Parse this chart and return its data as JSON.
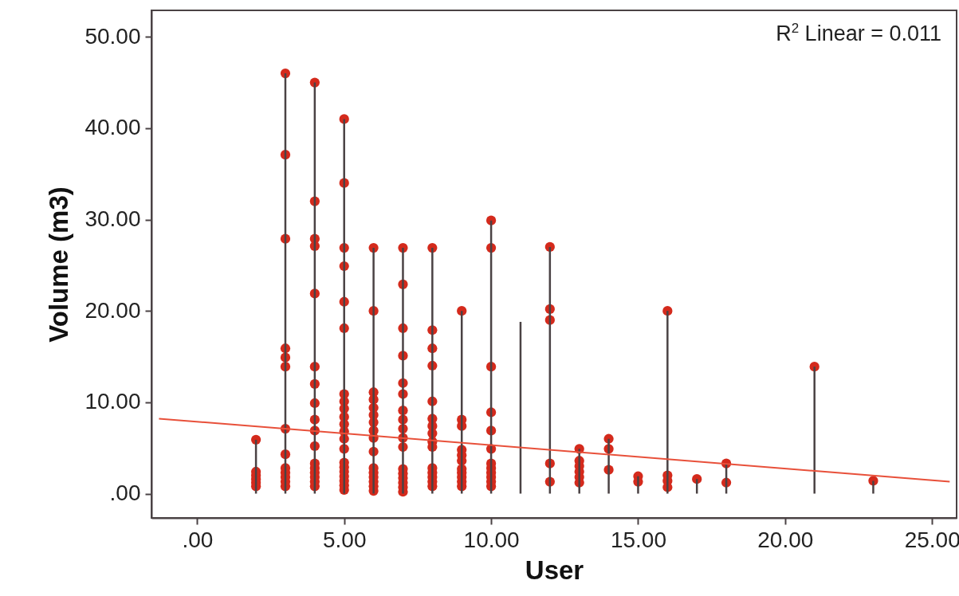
{
  "chart_data": {
    "type": "scatter",
    "xlabel": "User",
    "ylabel": "Volume (m3)",
    "xlim": [
      -1.42,
      25.7
    ],
    "ylim": [
      -2.66,
      52.9
    ],
    "xticks": [
      {
        "value": 0,
        "label": ".00"
      },
      {
        "value": 5,
        "label": "5.00"
      },
      {
        "value": 10,
        "label": "10.00"
      },
      {
        "value": 15,
        "label": "15.00"
      },
      {
        "value": 20,
        "label": "20.00"
      },
      {
        "value": 25,
        "label": "25.00"
      }
    ],
    "yticks": [
      {
        "value": 0,
        "label": ".00"
      },
      {
        "value": 10,
        "label": "10.00"
      },
      {
        "value": 20,
        "label": "20.00"
      },
      {
        "value": 30,
        "label": "30.00"
      },
      {
        "value": 40,
        "label": "40.00"
      },
      {
        "value": 50,
        "label": "50.00"
      }
    ],
    "marker": "circle",
    "annotations": [
      "R$^{2}$ Linear = 0.011"
    ],
    "series": [
      {
        "type": "bar",
        "color": "#4a4244",
        "x": [
          2,
          3,
          4,
          5,
          6,
          7,
          8,
          9,
          10,
          11,
          12,
          13,
          14,
          15,
          16,
          17,
          18,
          21,
          23
        ],
        "values": [
          5.9,
          46.0,
          45.0,
          41.0,
          26.9,
          26.9,
          26.9,
          20.0,
          29.9,
          18.8,
          27.0,
          4.9,
          6.0,
          1.9,
          20.0,
          1.6,
          3.3,
          13.9,
          1.4
        ]
      },
      {
        "color": "#d42a1c",
        "x": [
          2,
          2,
          2,
          2,
          2,
          2,
          3,
          3,
          3,
          3,
          3,
          3,
          3,
          3,
          3,
          3,
          3,
          3,
          3,
          4,
          4,
          4,
          4,
          4,
          4,
          4,
          4,
          4,
          4,
          4,
          4,
          4,
          4,
          4,
          4,
          4,
          5,
          5,
          5,
          5,
          5,
          5,
          5,
          5,
          5,
          5,
          5,
          5,
          5,
          5,
          5,
          5,
          5,
          5,
          5,
          5,
          5,
          6,
          6,
          6,
          6,
          6,
          6,
          6,
          6,
          6,
          6,
          6,
          6,
          6,
          6,
          6,
          6,
          7,
          7,
          7,
          7,
          7,
          7,
          7,
          7,
          7,
          7,
          7,
          7,
          7,
          7,
          7,
          7,
          7,
          8,
          8,
          8,
          8,
          8,
          8,
          8,
          8,
          8,
          8,
          8,
          8,
          8,
          8,
          8,
          9,
          9,
          9,
          9,
          9,
          9,
          9,
          9,
          9,
          9,
          9,
          10,
          10,
          10,
          10,
          10,
          10,
          10,
          10,
          10,
          10,
          10,
          10,
          12,
          12,
          12,
          12,
          12,
          13,
          13,
          13,
          13,
          13,
          13,
          14,
          14,
          14,
          15,
          15,
          16,
          16,
          16,
          16,
          17,
          18,
          18,
          21,
          23
        ],
        "values": [
          5.9,
          0.8,
          1.2,
          1.6,
          2.0,
          2.4,
          46.0,
          37.1,
          27.9,
          15.9,
          14.9,
          13.9,
          7.1,
          4.3,
          0.8,
          1.3,
          1.8,
          2.3,
          2.8,
          45.0,
          32.0,
          27.9,
          27.1,
          21.9,
          13.9,
          12.0,
          9.9,
          8.1,
          6.9,
          5.2,
          0.8,
          1.3,
          1.8,
          2.3,
          2.8,
          3.3,
          41.0,
          34.0,
          26.9,
          24.9,
          21.0,
          18.1,
          10.9,
          10.1,
          9.3,
          8.4,
          7.6,
          6.8,
          6.0,
          4.9,
          0.4,
          0.9,
          1.4,
          1.9,
          2.4,
          2.9,
          3.4,
          26.9,
          20.0,
          11.1,
          10.3,
          9.4,
          8.6,
          7.8,
          6.9,
          6.1,
          4.6,
          0.3,
          0.8,
          1.3,
          1.8,
          2.3,
          2.8,
          26.9,
          22.9,
          18.1,
          15.1,
          12.1,
          10.9,
          9.1,
          8.1,
          7.1,
          6.1,
          5.1,
          0.2,
          0.7,
          1.2,
          1.7,
          2.2,
          2.7,
          26.9,
          17.9,
          15.9,
          14.0,
          10.1,
          8.2,
          7.4,
          6.6,
          5.7,
          5.1,
          0.8,
          1.3,
          1.8,
          2.3,
          2.8,
          20.0,
          8.1,
          7.4,
          4.8,
          4.2,
          3.6,
          0.8,
          1.3,
          1.8,
          2.3,
          2.7,
          29.9,
          26.9,
          13.9,
          8.9,
          6.9,
          4.9,
          0.8,
          1.3,
          1.8,
          2.3,
          2.8,
          3.3,
          27.0,
          20.2,
          19.0,
          3.3,
          1.3,
          4.9,
          3.6,
          3.0,
          2.4,
          1.8,
          1.2,
          6.0,
          4.9,
          2.6,
          1.9,
          1.3,
          20.0,
          2.0,
          1.4,
          0.7,
          1.6,
          3.3,
          1.2,
          13.9,
          1.4
        ]
      },
      {
        "type": "line",
        "color": "#e8503a",
        "line_style": "solid",
        "marker": "none",
        "x": [
          -1.3,
          25.6
        ],
        "values": [
          8.2,
          1.3
        ]
      }
    ]
  }
}
